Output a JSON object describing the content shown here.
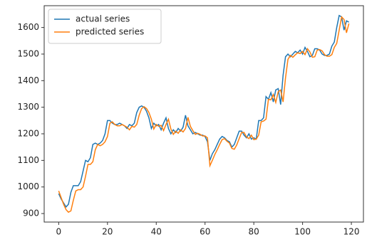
{
  "chart_data": {
    "type": "line",
    "x": [
      0,
      1,
      2,
      3,
      4,
      5,
      6,
      7,
      8,
      9,
      10,
      11,
      12,
      13,
      14,
      15,
      16,
      17,
      18,
      19,
      20,
      21,
      22,
      23,
      24,
      25,
      26,
      27,
      28,
      29,
      30,
      31,
      32,
      33,
      34,
      35,
      36,
      37,
      38,
      39,
      40,
      41,
      42,
      43,
      44,
      45,
      46,
      47,
      48,
      49,
      50,
      51,
      52,
      53,
      54,
      55,
      56,
      57,
      58,
      59,
      60,
      61,
      62,
      63,
      64,
      65,
      66,
      67,
      68,
      69,
      70,
      71,
      72,
      73,
      74,
      75,
      76,
      77,
      78,
      79,
      80,
      81,
      82,
      83,
      84,
      85,
      86,
      87,
      88,
      89,
      90,
      91,
      92,
      93,
      94,
      95,
      96,
      97,
      98,
      99,
      100,
      101,
      102,
      103,
      104,
      105,
      106,
      107,
      108,
      109,
      110,
      111,
      112,
      113,
      114,
      115,
      116,
      117,
      118,
      119
    ],
    "series": [
      {
        "name": "actual series",
        "color": "#1f77b4",
        "values": [
          975,
          955,
          940,
          925,
          935,
          980,
          1005,
          1005,
          1005,
          1020,
          1060,
          1100,
          1095,
          1110,
          1160,
          1165,
          1160,
          1165,
          1175,
          1200,
          1250,
          1250,
          1240,
          1235,
          1235,
          1240,
          1235,
          1230,
          1220,
          1235,
          1230,
          1240,
          1280,
          1300,
          1305,
          1300,
          1285,
          1260,
          1220,
          1240,
          1230,
          1235,
          1215,
          1240,
          1260,
          1220,
          1200,
          1215,
          1205,
          1220,
          1210,
          1225,
          1270,
          1230,
          1215,
          1200,
          1205,
          1200,
          1195,
          1195,
          1190,
          1170,
          1100,
          1125,
          1140,
          1160,
          1180,
          1190,
          1185,
          1175,
          1170,
          1150,
          1160,
          1185,
          1210,
          1210,
          1195,
          1185,
          1200,
          1180,
          1185,
          1180,
          1250,
          1250,
          1260,
          1340,
          1330,
          1355,
          1320,
          1365,
          1370,
          1310,
          1420,
          1490,
          1500,
          1490,
          1500,
          1510,
          1505,
          1515,
          1500,
          1525,
          1510,
          1490,
          1495,
          1520,
          1520,
          1515,
          1500,
          1495,
          1495,
          1500,
          1530,
          1545,
          1600,
          1645,
          1640,
          1590,
          1625,
          1620
        ]
      },
      {
        "name": "predicted series",
        "color": "#ff7f0e",
        "values": [
          985,
          960,
          935,
          915,
          905,
          910,
          950,
          985,
          990,
          990,
          1000,
          1040,
          1085,
          1085,
          1095,
          1140,
          1160,
          1155,
          1160,
          1170,
          1190,
          1240,
          1245,
          1235,
          1230,
          1230,
          1235,
          1230,
          1225,
          1215,
          1228,
          1225,
          1235,
          1270,
          1295,
          1302,
          1295,
          1280,
          1255,
          1218,
          1235,
          1228,
          1232,
          1212,
          1235,
          1255,
          1218,
          1198,
          1210,
          1202,
          1215,
          1207,
          1220,
          1262,
          1228,
          1212,
          1198,
          1202,
          1198,
          1192,
          1192,
          1185,
          1080,
          1100,
          1122,
          1140,
          1160,
          1178,
          1182,
          1172,
          1165,
          1145,
          1142,
          1158,
          1182,
          1205,
          1205,
          1188,
          1182,
          1195,
          1178,
          1180,
          1195,
          1245,
          1248,
          1255,
          1330,
          1328,
          1348,
          1318,
          1358,
          1365,
          1320,
          1410,
          1480,
          1495,
          1488,
          1497,
          1505,
          1502,
          1510,
          1498,
          1520,
          1508,
          1488,
          1490,
          1515,
          1517,
          1512,
          1498,
          1492,
          1492,
          1498,
          1525,
          1540,
          1590,
          1640,
          1630,
          1580,
          1615
        ]
      }
    ],
    "xlim": [
      -5.95,
      124.95
    ],
    "xticks": [
      0,
      20,
      40,
      60,
      80,
      100,
      120
    ],
    "ylim": [
      868,
      1682
    ],
    "yticks": [
      900,
      1000,
      1100,
      1200,
      1300,
      1400,
      1500,
      1600
    ],
    "legend": "upper left",
    "grid": false
  }
}
